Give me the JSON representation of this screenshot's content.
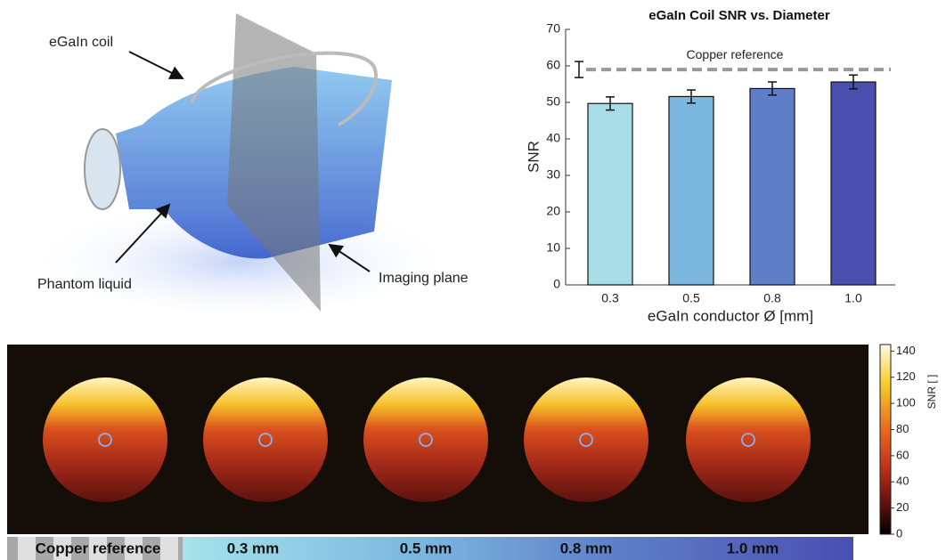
{
  "illustration": {
    "coil_label": "eGaIn coil",
    "liquid_label": "Phantom liquid",
    "plane_label": "Imaging plane"
  },
  "chart_data": [
    {
      "type": "bar",
      "title": "eGaIn Coil SNR vs. Diameter",
      "x_label": "eGaIn conductor Ø [mm]",
      "y_label": "SNR",
      "categories": [
        "0.3",
        "0.5",
        "0.8",
        "1.0"
      ],
      "values": [
        49.7,
        51.6,
        53.8,
        55.6
      ],
      "errors": [
        1.8,
        1.8,
        1.8,
        1.9
      ],
      "colors": [
        "#a6dde6",
        "#7cb7e0",
        "#5e7ec7",
        "#4a4fb0"
      ],
      "reference": {
        "label": "Copper reference",
        "value": 59,
        "error": 2.2
      },
      "ylim": [
        0,
        70
      ],
      "yticks": [
        0,
        10,
        20,
        30,
        40,
        50,
        60,
        70
      ]
    },
    {
      "type": "colorbar",
      "label": "SNR [ ]",
      "ylim": [
        0,
        145
      ],
      "yticks": [
        0,
        20,
        40,
        60,
        80,
        100,
        120,
        140
      ]
    }
  ],
  "images": {
    "captions": [
      "Copper reference",
      "0.3 mm",
      "0.5 mm",
      "0.8 mm",
      "1.0 mm"
    ]
  }
}
